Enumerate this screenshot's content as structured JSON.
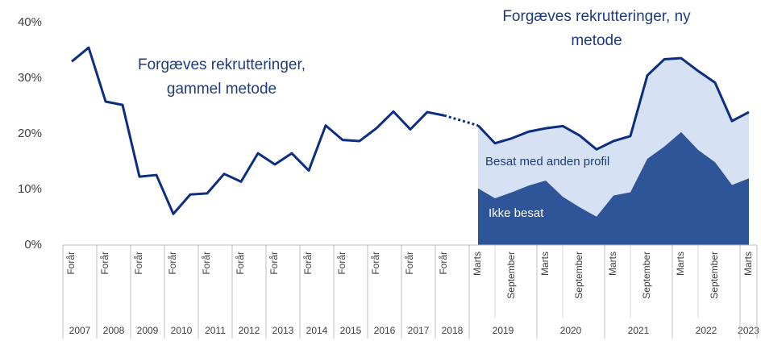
{
  "chart_data": {
    "type": "line",
    "categories": [
      "Forår",
      null,
      "Forår",
      null,
      "Forår",
      null,
      "Forår",
      null,
      "Forår",
      null,
      "Forår",
      null,
      "Forår",
      null,
      "Forår",
      null,
      "Forår",
      null,
      "Forår",
      null,
      "Forår",
      null,
      "Forår",
      null,
      "Marts",
      null,
      "September",
      null,
      "Marts",
      null,
      "September",
      null,
      "Marts",
      null,
      "September",
      null,
      "Marts",
      null,
      "September",
      null,
      "Marts"
    ],
    "category_years": [
      "2007",
      "2007",
      "2008",
      "2008",
      "2009",
      "2009",
      "2010",
      "2010",
      "2011",
      "2011",
      "2012",
      "2012",
      "2013",
      "2013",
      "2014",
      "2014",
      "2015",
      "2015",
      "2016",
      "2016",
      "2017",
      "2017",
      "2018",
      "2018",
      "2019",
      "2019",
      "2019",
      "2019",
      "2020",
      "2020",
      "2020",
      "2020",
      "2021",
      "2021",
      "2021",
      "2021",
      "2022",
      "2022",
      "2022",
      "2022",
      "2023"
    ],
    "series": [
      {
        "name": "Forgæves rekrutteringer, gammel metode",
        "color": "#0b2d84",
        "values": [
          33,
          35.5,
          25.8,
          25.2,
          12.3,
          12.6,
          5.6,
          9.1,
          9.3,
          12.8,
          11.4,
          16.5,
          14.5,
          16.5,
          13.4,
          21.5,
          18.9,
          18.7,
          21,
          24,
          20.8,
          23.9,
          23.3,
          null,
          null,
          null,
          null,
          null,
          null,
          null,
          null,
          null,
          null,
          null,
          null,
          null,
          null,
          null,
          null,
          null,
          null
        ]
      },
      {
        "name": "Forgæves rekrutteringer, ny metode",
        "color": "#0b2d84",
        "values": [
          null,
          null,
          null,
          null,
          null,
          null,
          null,
          null,
          null,
          null,
          null,
          null,
          null,
          null,
          null,
          null,
          null,
          null,
          null,
          null,
          null,
          null,
          null,
          null,
          21.5,
          18.3,
          19.2,
          20.4,
          21,
          21.4,
          19.7,
          17.2,
          18.7,
          19.6,
          30.5,
          33.4,
          33.6,
          31.3,
          29.2,
          22.3,
          23.9
        ]
      },
      {
        "name": "Ikke besat",
        "color": "#2e5597",
        "values": [
          null,
          null,
          null,
          null,
          null,
          null,
          null,
          null,
          null,
          null,
          null,
          null,
          null,
          null,
          null,
          null,
          null,
          null,
          null,
          null,
          null,
          null,
          null,
          null,
          10.2,
          8.4,
          9.5,
          10.7,
          11.6,
          8.7,
          6.8,
          5.1,
          8.9,
          9.5,
          15.5,
          17.7,
          20.3,
          17.1,
          14.9,
          10.8,
          12
        ]
      }
    ],
    "area_label": "Besat med anden profil",
    "area_color": "#d7e1f4",
    "ylim": [
      0,
      40
    ],
    "yticks": [
      {
        "value": 0,
        "label": "0%"
      },
      {
        "value": 10,
        "label": "10%"
      },
      {
        "value": 20,
        "label": "20%"
      },
      {
        "value": 30,
        "label": "30%"
      },
      {
        "value": 40,
        "label": "40%"
      }
    ],
    "grid": false
  }
}
